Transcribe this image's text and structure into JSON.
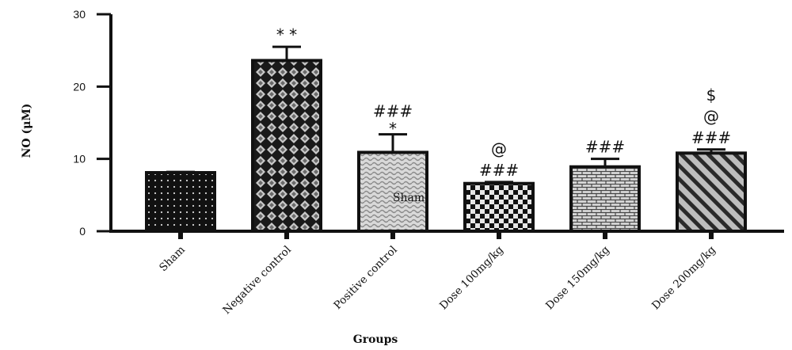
{
  "chart_data": {
    "type": "bar",
    "xlabel": "Groups",
    "ylabel": "NO (μM)",
    "ylim": [
      0,
      30
    ],
    "yticks": [
      0,
      10,
      20,
      30
    ],
    "grid": false,
    "categories": [
      "Sham",
      "Negative control",
      "Positive control",
      "Dose 100mg/kg",
      "Dose 150mg/kg",
      "Dose 200mg/kg"
    ],
    "values": [
      8.1,
      23.6,
      10.9,
      6.6,
      8.9,
      10.8
    ],
    "errors": [
      0.1,
      1.9,
      2.5,
      0.2,
      1.1,
      0.5
    ],
    "annotations": [
      [],
      [
        "* *"
      ],
      [
        "*",
        "###"
      ],
      [
        "###",
        "@"
      ],
      [
        "###"
      ],
      [
        "###",
        "@",
        "$"
      ]
    ],
    "in_bar_labels": [
      "",
      "",
      "Sham",
      "",
      "",
      ""
    ],
    "colors": {
      "bar_stroke": "#111111",
      "fill_bg": "#111111",
      "fill_fg": "#cfcfcf"
    },
    "patterns": [
      "dots",
      "diamonds",
      "waves",
      "checker",
      "bricks",
      "diagonal"
    ]
  }
}
